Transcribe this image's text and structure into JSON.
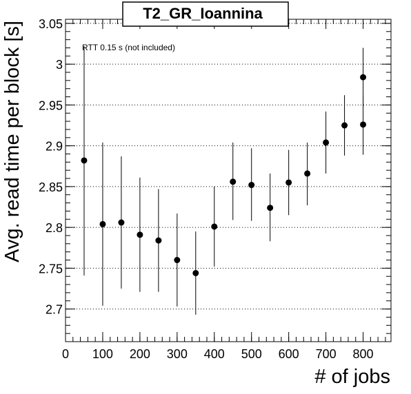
{
  "chart_data": {
    "type": "scatter",
    "title": "T2_GR_Ioannina",
    "xlabel": "# of jobs",
    "ylabel": "Avg. read time per block [s]",
    "annotation": "RTT 0.15 s (not included)",
    "xlim": [
      0,
      875
    ],
    "ylim": [
      2.66,
      3.055
    ],
    "x_ticks": [
      0,
      100,
      200,
      300,
      400,
      500,
      600,
      700,
      800
    ],
    "x_tick_labels": [
      "0",
      "100",
      "200",
      "300",
      "400",
      "500",
      "600",
      "700",
      "800"
    ],
    "y_ticks": [
      2.7,
      2.75,
      2.8,
      2.85,
      2.9,
      2.95,
      3.0,
      3.05
    ],
    "y_tick_labels": [
      "2.7",
      "2.75",
      "2.8",
      "2.85",
      "2.9",
      "2.95",
      "3",
      "3.05"
    ],
    "grid": "horizontal dotted",
    "marker_color": "#000000",
    "series": [
      {
        "points": [
          {
            "x": 50,
            "y": 2.882,
            "ylow": 2.741,
            "yhigh": 3.022
          },
          {
            "x": 100,
            "y": 2.804,
            "ylow": 2.704,
            "yhigh": 2.904
          },
          {
            "x": 150,
            "y": 2.806,
            "ylow": 2.725,
            "yhigh": 2.887
          },
          {
            "x": 200,
            "y": 2.791,
            "ylow": 2.721,
            "yhigh": 2.861
          },
          {
            "x": 250,
            "y": 2.784,
            "ylow": 2.721,
            "yhigh": 2.847
          },
          {
            "x": 300,
            "y": 2.76,
            "ylow": 2.703,
            "yhigh": 2.817
          },
          {
            "x": 350,
            "y": 2.744,
            "ylow": 2.693,
            "yhigh": 2.795
          },
          {
            "x": 400,
            "y": 2.801,
            "ylow": 2.752,
            "yhigh": 2.85
          },
          {
            "x": 450,
            "y": 2.856,
            "ylow": 2.809,
            "yhigh": 2.904
          },
          {
            "x": 500,
            "y": 2.852,
            "ylow": 2.808,
            "yhigh": 2.897
          },
          {
            "x": 550,
            "y": 2.824,
            "ylow": 2.783,
            "yhigh": 2.866
          },
          {
            "x": 600,
            "y": 2.855,
            "ylow": 2.815,
            "yhigh": 2.895
          },
          {
            "x": 650,
            "y": 2.866,
            "ylow": 2.827,
            "yhigh": 2.904
          },
          {
            "x": 700,
            "y": 2.904,
            "ylow": 2.866,
            "yhigh": 2.942
          },
          {
            "x": 750,
            "y": 2.925,
            "ylow": 2.888,
            "yhigh": 2.962
          },
          {
            "x": 800,
            "y": 2.926,
            "ylow": 2.889,
            "yhigh": 2.962
          },
          {
            "x": 800,
            "y": 2.984,
            "ylow": 2.947,
            "yhigh": 3.02
          }
        ]
      }
    ]
  }
}
